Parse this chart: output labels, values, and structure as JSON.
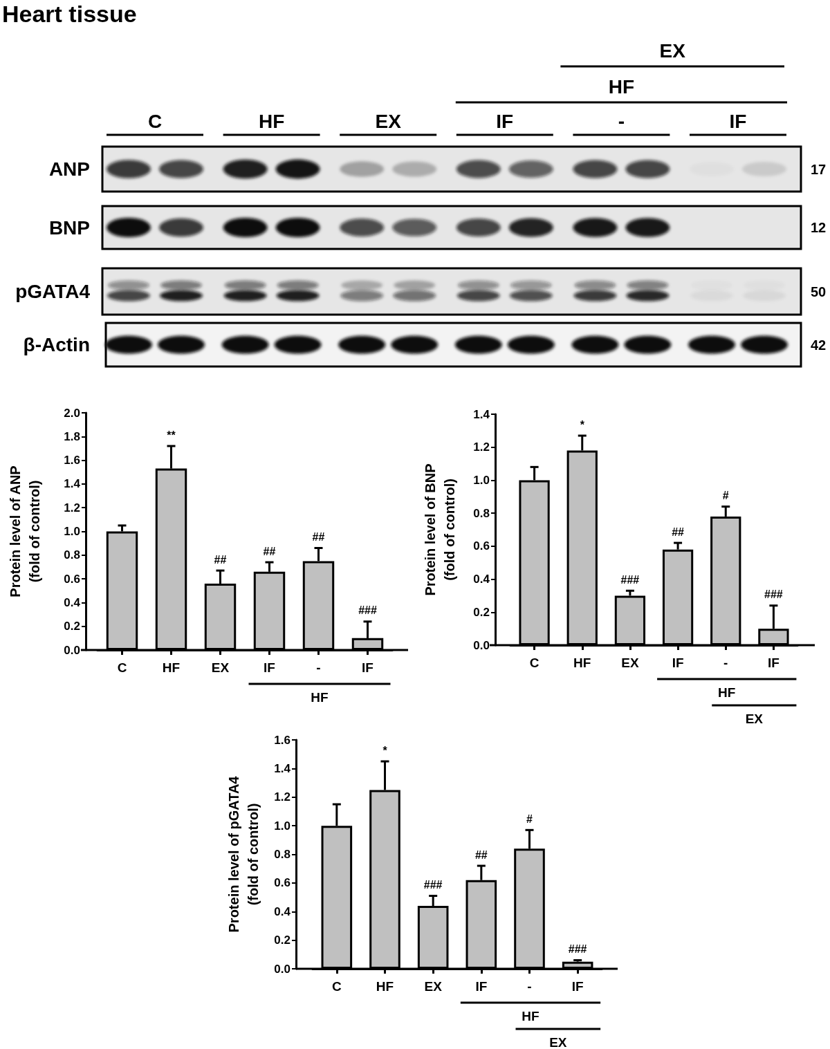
{
  "chart_data": [
    {
      "type": "other",
      "title": "Heart tissue",
      "categories": [
        "C",
        "HF",
        "EX",
        "IF",
        "-",
        "IF"
      ],
      "y_categories": [
        "ANP",
        "BNP",
        "pGATA4",
        "β-Actin"
      ],
      "y2_categories": [
        "17",
        "12",
        "50",
        "42"
      ],
      "annotations": [
        "HF",
        "EX"
      ]
    },
    {
      "type": "bar",
      "ylabel": "Protein level of ANP\n(fold of control)",
      "categories": [
        "C",
        "HF",
        "EX",
        "IF",
        "-",
        "IF"
      ],
      "values": [
        1.0,
        1.53,
        0.56,
        0.66,
        0.75,
        0.1
      ],
      "errors": [
        [
          1.0,
          1.05
        ],
        [
          1.53,
          1.72
        ],
        [
          0.56,
          0.67
        ],
        [
          0.66,
          0.74
        ],
        [
          0.75,
          0.86
        ],
        [
          0.1,
          0.24
        ]
      ],
      "value_labels": [
        null,
        "**",
        "##",
        "##",
        "##",
        "###"
      ],
      "color": "#c0c0c0",
      "ylim": [
        0,
        2.0
      ],
      "yticks": [
        {
          "value": 0,
          "label": "0.0"
        },
        0.2,
        0.4,
        0.6,
        0.8,
        {
          "value": 1.0,
          "label": "1.0"
        },
        1.2,
        1.4,
        1.6,
        1.8,
        {
          "value": 2.0,
          "label": "2.0"
        }
      ],
      "annotations": [
        "HF"
      ]
    },
    {
      "type": "bar",
      "ylabel": "Protein level of BNP\n(fold of control)",
      "categories": [
        "C",
        "HF",
        "EX",
        "IF",
        "-",
        "IF"
      ],
      "values": [
        1.0,
        1.18,
        0.3,
        0.58,
        0.78,
        0.1
      ],
      "errors": [
        [
          1.0,
          1.08
        ],
        [
          1.18,
          1.27
        ],
        [
          0.3,
          0.33
        ],
        [
          0.58,
          0.62
        ],
        [
          0.78,
          0.84
        ],
        [
          0.1,
          0.24
        ]
      ],
      "value_labels": [
        null,
        "*",
        "###",
        "##",
        "#",
        "###"
      ],
      "color": "#c0c0c0",
      "ylim": [
        0,
        1.4
      ],
      "yticks": [
        {
          "value": 0,
          "label": "0.0"
        },
        0.2,
        0.4,
        0.6,
        0.8,
        {
          "value": 1.0,
          "label": "1.0"
        },
        1.2,
        1.4
      ],
      "annotations": [
        "HF",
        "EX"
      ]
    },
    {
      "type": "bar",
      "ylabel": "Protein level of pGATA4\n(fold of control)",
      "categories": [
        "C",
        "HF",
        "EX",
        "IF",
        "-",
        "IF"
      ],
      "values": [
        1.0,
        1.25,
        0.44,
        0.62,
        0.84,
        0.05
      ],
      "errors": [
        [
          1.0,
          1.15
        ],
        [
          1.25,
          1.45
        ],
        [
          0.44,
          0.51
        ],
        [
          0.62,
          0.72
        ],
        [
          0.84,
          0.97
        ],
        [
          0.05,
          0.06
        ]
      ],
      "value_labels": [
        null,
        "*",
        "###",
        "##",
        "#",
        "###"
      ],
      "color": "#c0c0c0",
      "ylim": [
        0,
        1.6
      ],
      "yticks": [
        {
          "value": 0,
          "label": "0.0"
        },
        0.2,
        0.4,
        0.6,
        0.8,
        {
          "value": 1.0,
          "label": "1.0"
        },
        1.2,
        1.4,
        1.6
      ],
      "annotations": [
        "HF",
        "EX"
      ]
    }
  ]
}
